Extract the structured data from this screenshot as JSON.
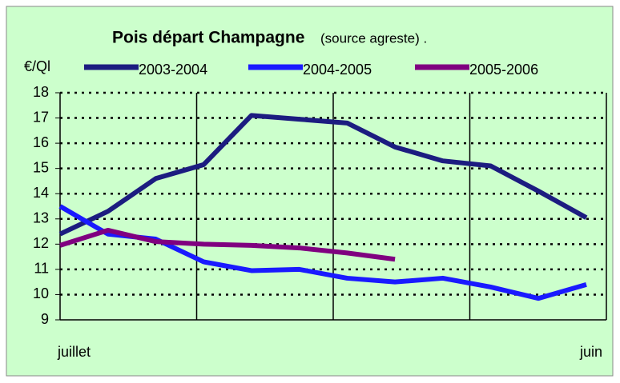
{
  "chart_data": {
    "type": "line",
    "title": "Pois départ Champagne",
    "subtitle": "(source agreste) .",
    "y_label": "€/Ql",
    "categories": [
      "juillet",
      null,
      null,
      null,
      null,
      null,
      null,
      null,
      null,
      null,
      null,
      "juin"
    ],
    "series": [
      {
        "name": "2003-2004",
        "color": "#1c1c80",
        "values": [
          12.4,
          13.3,
          14.6,
          15.15,
          17.1,
          16.95,
          16.8,
          15.85,
          15.3,
          15.1,
          14.1,
          13.05
        ]
      },
      {
        "name": "2004-2005",
        "color": "#1a1aff",
        "values": [
          13.5,
          12.4,
          12.2,
          11.3,
          10.95,
          11.0,
          10.65,
          10.5,
          10.65,
          10.3,
          9.85,
          10.4
        ]
      },
      {
        "name": "2005-2006",
        "color": "#800080",
        "values": [
          11.95,
          12.55,
          12.1,
          12.0,
          11.95,
          11.85,
          11.65,
          11.4,
          null,
          null,
          null,
          null
        ]
      }
    ],
    "ylim": [
      9,
      18
    ],
    "yticks": [
      9,
      10,
      11,
      12,
      13,
      14,
      15,
      16,
      17,
      18
    ],
    "grid": true
  }
}
